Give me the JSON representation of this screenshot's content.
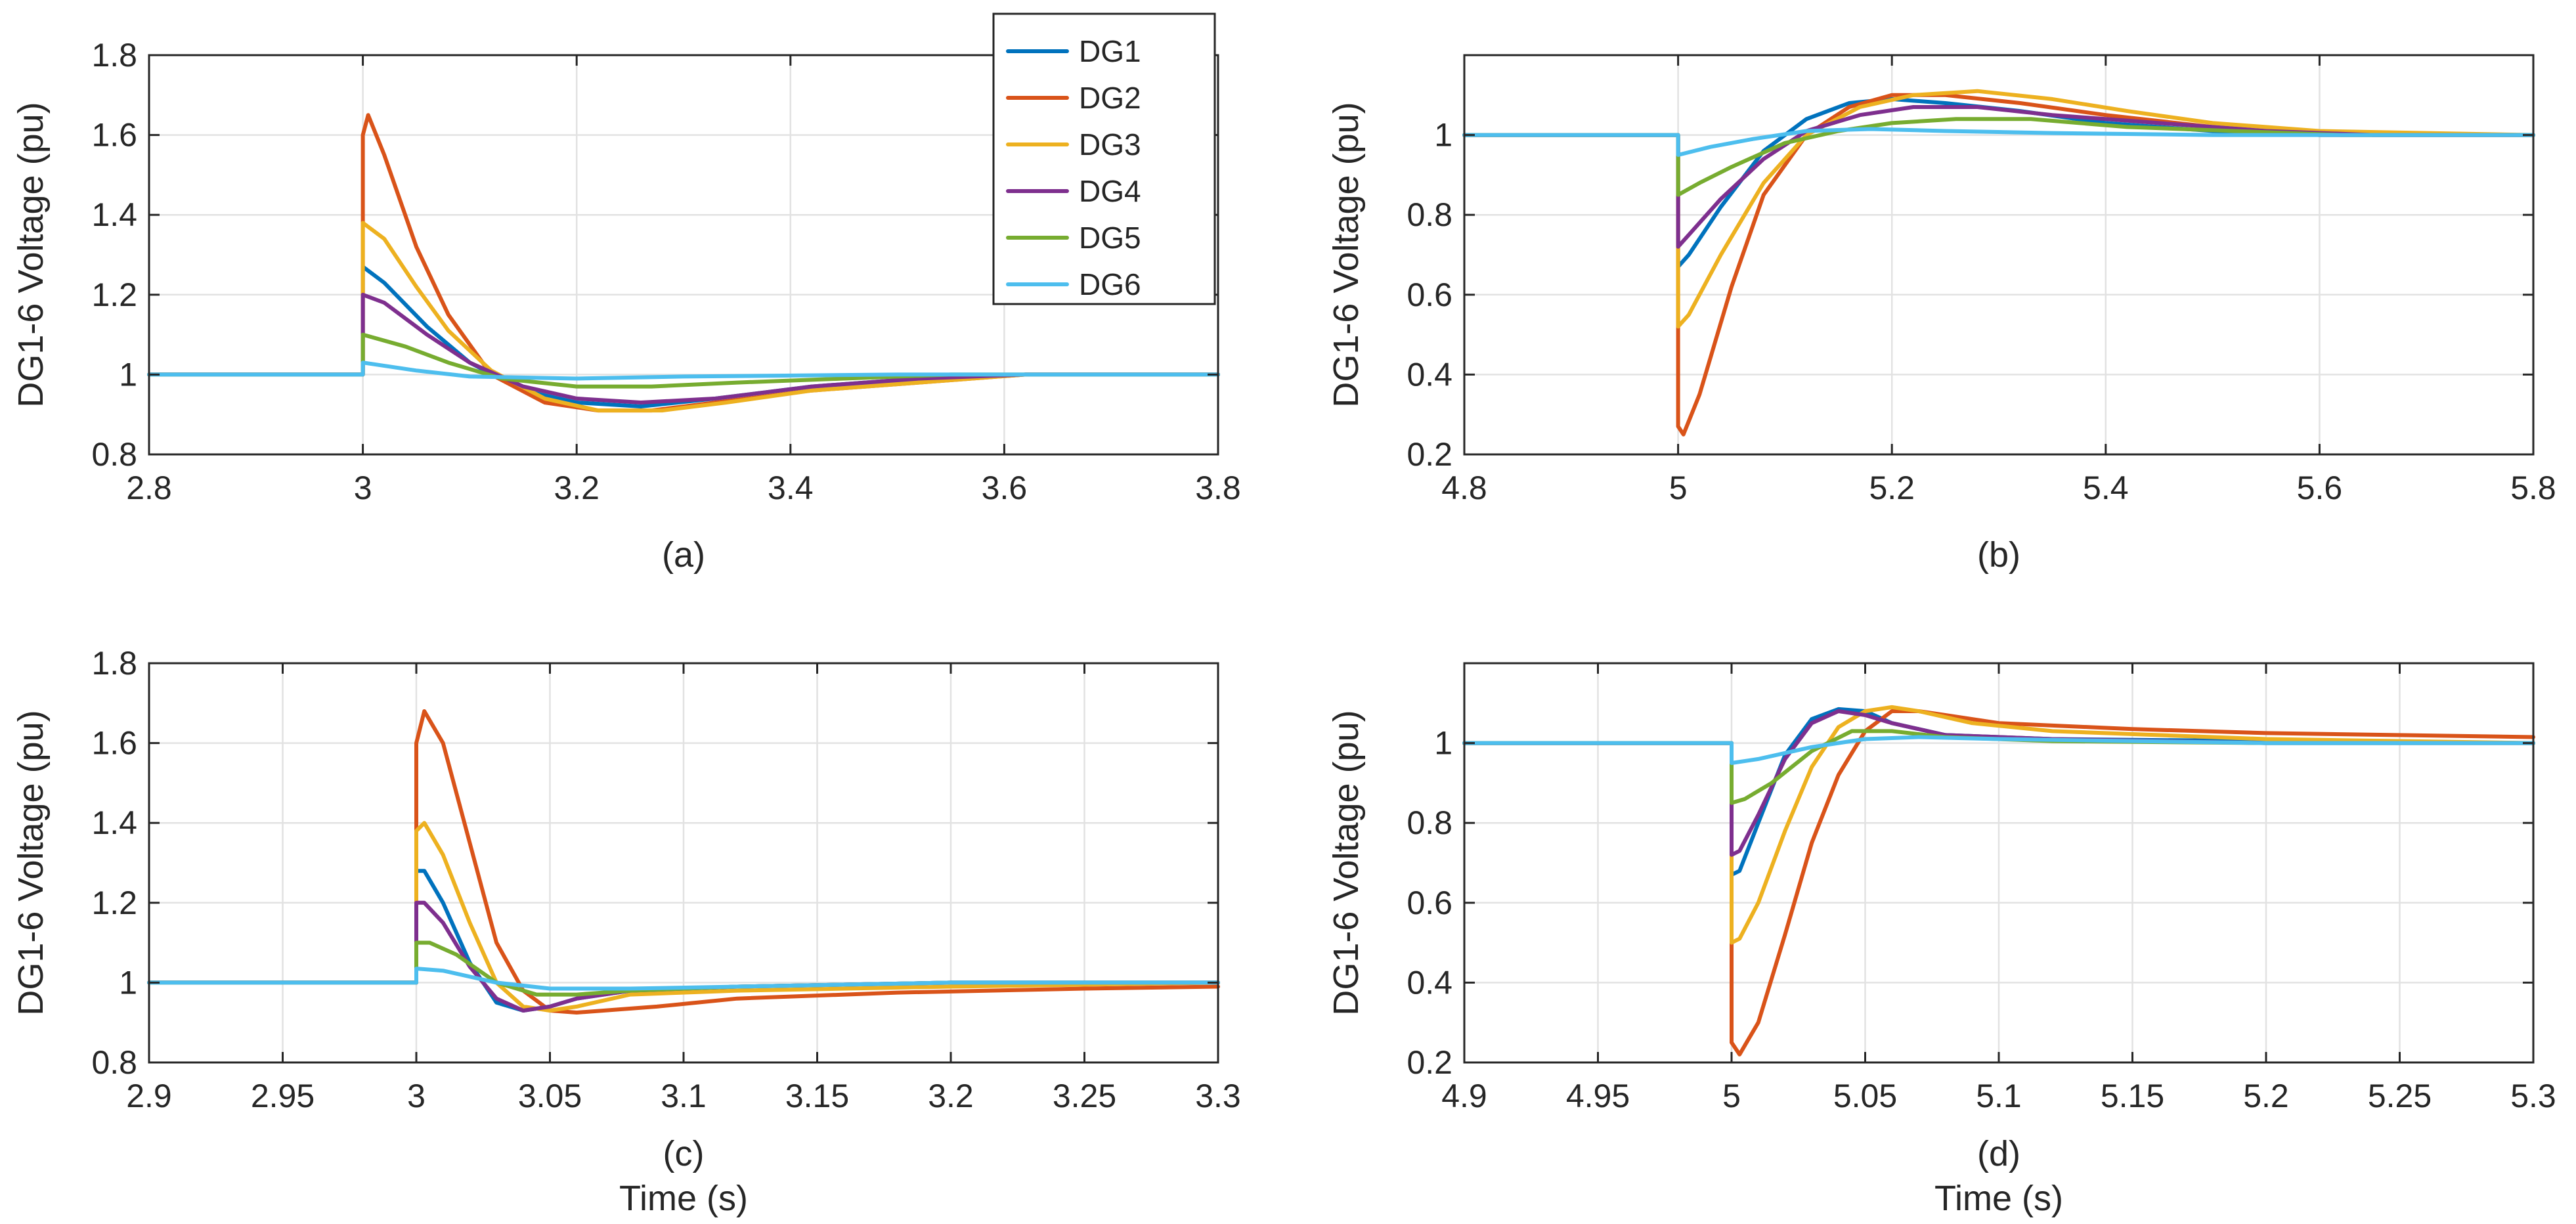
{
  "colors": {
    "DG1": "#0072BD",
    "DG2": "#D95319",
    "DG3": "#EDB120",
    "DG4": "#7E2F8E",
    "DG5": "#77AC30",
    "DG6": "#4DBEEE"
  },
  "legend": [
    "DG1",
    "DG2",
    "DG3",
    "DG4",
    "DG5",
    "DG6"
  ],
  "chart_data": [
    {
      "id": "a",
      "type": "line",
      "caption": "(a)",
      "xlabel": "",
      "ylabel": "DG1-6 Voltage (pu)",
      "xlim": [
        2.8,
        3.8
      ],
      "ylim": [
        0.8,
        1.8
      ],
      "xticks": [
        2.8,
        3.0,
        3.2,
        3.4,
        3.6,
        3.8
      ],
      "xtick_labels": [
        "2.8",
        "3",
        "3.2",
        "3.4",
        "3.6",
        "3.8"
      ],
      "yticks": [
        0.8,
        1.0,
        1.2,
        1.4,
        1.6,
        1.8
      ],
      "ytick_labels": [
        "0.8",
        "1",
        "1.2",
        "1.4",
        "1.6",
        "1.8"
      ],
      "legend_position": "top-right",
      "series": [
        {
          "name": "DG1",
          "x": [
            2.8,
            3.0,
            3.0,
            3.02,
            3.06,
            3.1,
            3.15,
            3.2,
            3.26,
            3.33,
            3.42,
            3.52,
            3.62,
            3.8
          ],
          "y": [
            1.0,
            1.0,
            1.27,
            1.23,
            1.12,
            1.03,
            0.96,
            0.93,
            0.92,
            0.94,
            0.97,
            0.99,
            1.0,
            1.0
          ]
        },
        {
          "name": "DG2",
          "x": [
            2.8,
            3.0,
            3.0,
            3.005,
            3.02,
            3.05,
            3.08,
            3.12,
            3.17,
            3.22,
            3.27,
            3.33,
            3.42,
            3.52,
            3.62,
            3.8
          ],
          "y": [
            1.0,
            1.0,
            1.6,
            1.65,
            1.55,
            1.32,
            1.15,
            1.0,
            0.93,
            0.91,
            0.91,
            0.93,
            0.96,
            0.98,
            1.0,
            1.0
          ]
        },
        {
          "name": "DG3",
          "x": [
            2.8,
            3.0,
            3.0,
            3.02,
            3.05,
            3.08,
            3.12,
            3.17,
            3.22,
            3.28,
            3.34,
            3.42,
            3.52,
            3.62,
            3.8
          ],
          "y": [
            1.0,
            1.0,
            1.38,
            1.34,
            1.22,
            1.11,
            1.01,
            0.94,
            0.91,
            0.91,
            0.93,
            0.96,
            0.98,
            1.0,
            1.0
          ]
        },
        {
          "name": "DG4",
          "x": [
            2.8,
            3.0,
            3.0,
            3.02,
            3.06,
            3.1,
            3.15,
            3.2,
            3.26,
            3.33,
            3.42,
            3.52,
            3.62,
            3.8
          ],
          "y": [
            1.0,
            1.0,
            1.2,
            1.18,
            1.1,
            1.03,
            0.97,
            0.94,
            0.93,
            0.94,
            0.97,
            0.99,
            1.0,
            1.0
          ]
        },
        {
          "name": "DG5",
          "x": [
            2.8,
            3.0,
            3.0,
            3.04,
            3.08,
            3.13,
            3.2,
            3.27,
            3.35,
            3.45,
            3.55,
            3.8
          ],
          "y": [
            1.0,
            1.0,
            1.1,
            1.07,
            1.03,
            0.99,
            0.97,
            0.97,
            0.98,
            0.99,
            1.0,
            1.0
          ]
        },
        {
          "name": "DG6",
          "x": [
            2.8,
            3.0,
            3.0,
            3.05,
            3.1,
            3.2,
            3.3,
            3.5,
            3.8
          ],
          "y": [
            1.0,
            1.0,
            1.03,
            1.01,
            0.995,
            0.99,
            0.995,
            1.0,
            1.0
          ]
        }
      ]
    },
    {
      "id": "b",
      "type": "line",
      "caption": "(b)",
      "xlabel": "",
      "ylabel": "DG1-6 Voltage (pu)",
      "xlim": [
        4.8,
        5.8
      ],
      "ylim": [
        0.2,
        1.2
      ],
      "xticks": [
        4.8,
        5.0,
        5.2,
        5.4,
        5.6,
        5.8
      ],
      "xtick_labels": [
        "4.8",
        "5",
        "5.2",
        "5.4",
        "5.6",
        "5.8"
      ],
      "yticks": [
        0.2,
        0.4,
        0.6,
        0.8,
        1.0
      ],
      "ytick_labels": [
        "0.2",
        "0.4",
        "0.6",
        "0.8",
        "1"
      ],
      "series": [
        {
          "name": "DG1",
          "x": [
            4.8,
            5.0,
            5.0,
            5.01,
            5.04,
            5.08,
            5.12,
            5.16,
            5.2,
            5.25,
            5.32,
            5.4,
            5.5,
            5.6,
            5.8
          ],
          "y": [
            1.0,
            1.0,
            0.67,
            0.7,
            0.82,
            0.96,
            1.04,
            1.08,
            1.09,
            1.08,
            1.06,
            1.03,
            1.01,
            1.0,
            1.0
          ]
        },
        {
          "name": "DG2",
          "x": [
            4.8,
            5.0,
            5.0,
            5.005,
            5.02,
            5.05,
            5.08,
            5.12,
            5.16,
            5.2,
            5.25,
            5.32,
            5.4,
            5.5,
            5.6,
            5.8
          ],
          "y": [
            1.0,
            1.0,
            0.27,
            0.25,
            0.35,
            0.62,
            0.85,
            1.0,
            1.07,
            1.1,
            1.1,
            1.08,
            1.05,
            1.02,
            1.0,
            1.0
          ]
        },
        {
          "name": "DG3",
          "x": [
            4.8,
            5.0,
            5.0,
            5.01,
            5.04,
            5.08,
            5.12,
            5.17,
            5.22,
            5.28,
            5.35,
            5.42,
            5.5,
            5.6,
            5.8
          ],
          "y": [
            1.0,
            1.0,
            0.52,
            0.55,
            0.7,
            0.88,
            1.0,
            1.07,
            1.1,
            1.11,
            1.09,
            1.06,
            1.03,
            1.01,
            1.0
          ]
        },
        {
          "name": "DG4",
          "x": [
            4.8,
            5.0,
            5.0,
            5.01,
            5.04,
            5.08,
            5.12,
            5.17,
            5.22,
            5.28,
            5.35,
            5.45,
            5.55,
            5.65,
            5.8
          ],
          "y": [
            1.0,
            1.0,
            0.72,
            0.75,
            0.84,
            0.94,
            1.01,
            1.05,
            1.07,
            1.07,
            1.05,
            1.03,
            1.01,
            1.0,
            1.0
          ]
        },
        {
          "name": "DG5",
          "x": [
            4.8,
            5.0,
            5.0,
            5.02,
            5.05,
            5.1,
            5.15,
            5.2,
            5.26,
            5.33,
            5.42,
            5.52,
            5.62,
            5.8
          ],
          "y": [
            1.0,
            1.0,
            0.85,
            0.88,
            0.92,
            0.98,
            1.01,
            1.03,
            1.04,
            1.04,
            1.02,
            1.01,
            1.0,
            1.0
          ]
        },
        {
          "name": "DG6",
          "x": [
            4.8,
            5.0,
            5.0,
            5.03,
            5.07,
            5.12,
            5.18,
            5.25,
            5.35,
            5.5,
            5.8
          ],
          "y": [
            1.0,
            1.0,
            0.95,
            0.97,
            0.99,
            1.01,
            1.015,
            1.01,
            1.005,
            1.0,
            1.0
          ]
        }
      ]
    },
    {
      "id": "c",
      "type": "line",
      "caption": "(c)",
      "xlabel": "Time (s)",
      "ylabel": "DG1-6 Voltage (pu)",
      "xlim": [
        2.9,
        3.3
      ],
      "ylim": [
        0.8,
        1.8
      ],
      "xticks": [
        2.9,
        2.95,
        3.0,
        3.05,
        3.1,
        3.15,
        3.2,
        3.25,
        3.3
      ],
      "xtick_labels": [
        "2.9",
        "2.95",
        "3",
        "3.05",
        "3.1",
        "3.15",
        "3.2",
        "3.25",
        "3.3"
      ],
      "yticks": [
        0.8,
        1.0,
        1.2,
        1.4,
        1.6,
        1.8
      ],
      "ytick_labels": [
        "0.8",
        "1",
        "1.2",
        "1.4",
        "1.6",
        "1.8"
      ],
      "series": [
        {
          "name": "DG1",
          "x": [
            2.9,
            3.0,
            3.0,
            3.003,
            3.01,
            3.02,
            3.03,
            3.04,
            3.05,
            3.06,
            3.08,
            3.12,
            3.2,
            3.3
          ],
          "y": [
            1.0,
            1.0,
            1.28,
            1.28,
            1.2,
            1.05,
            0.95,
            0.93,
            0.94,
            0.96,
            0.98,
            0.99,
            1.0,
            1.0
          ]
        },
        {
          "name": "DG2",
          "x": [
            2.9,
            3.0,
            3.0,
            3.003,
            3.01,
            3.02,
            3.03,
            3.04,
            3.05,
            3.06,
            3.07,
            3.09,
            3.12,
            3.18,
            3.25,
            3.3
          ],
          "y": [
            1.0,
            1.0,
            1.6,
            1.68,
            1.6,
            1.35,
            1.1,
            0.98,
            0.93,
            0.925,
            0.93,
            0.94,
            0.96,
            0.975,
            0.985,
            0.99
          ]
        },
        {
          "name": "DG3",
          "x": [
            2.9,
            3.0,
            3.0,
            3.003,
            3.01,
            3.02,
            3.03,
            3.04,
            3.05,
            3.06,
            3.08,
            3.12,
            3.2,
            3.3
          ],
          "y": [
            1.0,
            1.0,
            1.38,
            1.4,
            1.32,
            1.15,
            1.0,
            0.94,
            0.93,
            0.94,
            0.97,
            0.98,
            0.99,
            1.0
          ]
        },
        {
          "name": "DG4",
          "x": [
            2.9,
            3.0,
            3.0,
            3.003,
            3.01,
            3.02,
            3.03,
            3.04,
            3.05,
            3.06,
            3.08,
            3.12,
            3.2,
            3.3
          ],
          "y": [
            1.0,
            1.0,
            1.2,
            1.2,
            1.15,
            1.04,
            0.96,
            0.93,
            0.94,
            0.96,
            0.98,
            0.99,
            1.0,
            1.0
          ]
        },
        {
          "name": "DG5",
          "x": [
            2.9,
            3.0,
            3.0,
            3.005,
            3.015,
            3.03,
            3.045,
            3.06,
            3.08,
            3.12,
            3.2,
            3.3
          ],
          "y": [
            1.0,
            1.0,
            1.1,
            1.1,
            1.07,
            1.0,
            0.97,
            0.97,
            0.98,
            0.99,
            1.0,
            1.0
          ]
        },
        {
          "name": "DG6",
          "x": [
            2.9,
            3.0,
            3.0,
            3.01,
            3.03,
            3.05,
            3.08,
            3.12,
            3.2,
            3.3
          ],
          "y": [
            1.0,
            1.0,
            1.035,
            1.03,
            1.0,
            0.985,
            0.985,
            0.99,
            1.0,
            1.0
          ]
        }
      ]
    },
    {
      "id": "d",
      "type": "line",
      "caption": "(d)",
      "xlabel": "Time (s)",
      "ylabel": "DG1-6 Voltage (pu)",
      "xlim": [
        4.9,
        5.3
      ],
      "ylim": [
        0.2,
        1.2
      ],
      "xticks": [
        4.9,
        4.95,
        5.0,
        5.05,
        5.1,
        5.15,
        5.2,
        5.25,
        5.3
      ],
      "xtick_labels": [
        "4.9",
        "4.95",
        "5",
        "5.05",
        "5.1",
        "5.15",
        "5.2",
        "5.25",
        "5.3"
      ],
      "yticks": [
        0.2,
        0.4,
        0.6,
        0.8,
        1.0
      ],
      "ytick_labels": [
        "0.2",
        "0.4",
        "0.6",
        "0.8",
        "1"
      ],
      "series": [
        {
          "name": "DG1",
          "x": [
            4.9,
            5.0,
            5.0,
            5.003,
            5.01,
            5.02,
            5.03,
            5.04,
            5.05,
            5.06,
            5.08,
            5.12,
            5.2,
            5.3
          ],
          "y": [
            1.0,
            1.0,
            0.67,
            0.68,
            0.8,
            0.97,
            1.06,
            1.085,
            1.08,
            1.05,
            1.02,
            1.01,
            1.005,
            1.0
          ]
        },
        {
          "name": "DG2",
          "x": [
            4.9,
            5.0,
            5.0,
            5.003,
            5.01,
            5.02,
            5.03,
            5.04,
            5.05,
            5.06,
            5.07,
            5.08,
            5.1,
            5.15,
            5.2,
            5.3
          ],
          "y": [
            1.0,
            1.0,
            0.25,
            0.22,
            0.3,
            0.52,
            0.75,
            0.92,
            1.03,
            1.08,
            1.08,
            1.07,
            1.05,
            1.035,
            1.025,
            1.015
          ]
        },
        {
          "name": "DG3",
          "x": [
            4.9,
            5.0,
            5.0,
            5.003,
            5.01,
            5.02,
            5.03,
            5.04,
            5.05,
            5.06,
            5.07,
            5.09,
            5.12,
            5.2,
            5.3
          ],
          "y": [
            1.0,
            1.0,
            0.5,
            0.51,
            0.6,
            0.78,
            0.94,
            1.04,
            1.08,
            1.09,
            1.08,
            1.05,
            1.03,
            1.01,
            1.0
          ]
        },
        {
          "name": "DG4",
          "x": [
            4.9,
            5.0,
            5.0,
            5.003,
            5.01,
            5.02,
            5.03,
            5.04,
            5.05,
            5.06,
            5.08,
            5.12,
            5.2,
            5.3
          ],
          "y": [
            1.0,
            1.0,
            0.72,
            0.73,
            0.82,
            0.96,
            1.05,
            1.08,
            1.07,
            1.05,
            1.02,
            1.01,
            1.0,
            1.0
          ]
        },
        {
          "name": "DG5",
          "x": [
            4.9,
            5.0,
            5.0,
            5.005,
            5.015,
            5.03,
            5.045,
            5.06,
            5.08,
            5.12,
            5.2,
            5.3
          ],
          "y": [
            1.0,
            1.0,
            0.85,
            0.86,
            0.9,
            0.98,
            1.03,
            1.03,
            1.015,
            1.005,
            1.0,
            1.0
          ]
        },
        {
          "name": "DG6",
          "x": [
            4.9,
            5.0,
            5.0,
            5.01,
            5.03,
            5.05,
            5.07,
            5.1,
            5.2,
            5.3
          ],
          "y": [
            1.0,
            1.0,
            0.95,
            0.96,
            0.99,
            1.01,
            1.015,
            1.01,
            1.0,
            1.0
          ]
        }
      ]
    }
  ]
}
